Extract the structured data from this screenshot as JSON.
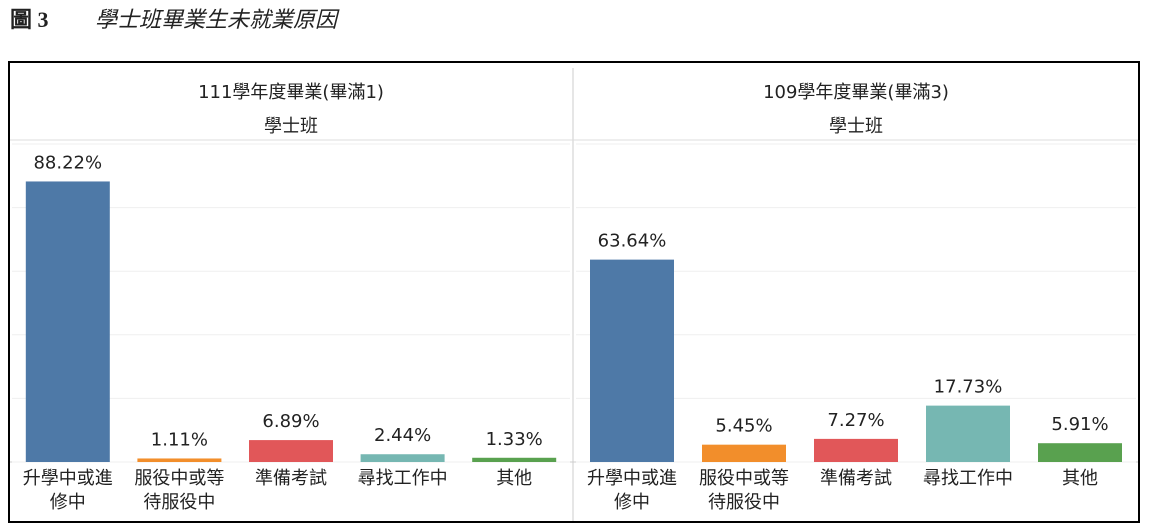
{
  "figure": {
    "label": "圖 3",
    "title": "學士班畢業生未就業原因"
  },
  "chart_data": [
    {
      "type": "bar",
      "title": "111學年度畢業(畢滿1)",
      "subtitle": "學士班",
      "categories": [
        "升學中或進修中",
        "服役中或等待服役中",
        "準備考試",
        "尋找工作中",
        "其他"
      ],
      "values": [
        88.22,
        1.11,
        6.89,
        2.44,
        1.33
      ],
      "value_labels": [
        "88.22%",
        "1.11%",
        "6.89%",
        "2.44%",
        "1.33%"
      ],
      "colors": [
        "#4e79a7",
        "#f28e2b",
        "#e15759",
        "#76b7b2",
        "#59a14f"
      ],
      "ylim": [
        0,
        100
      ],
      "yticks": [
        0,
        20,
        40,
        60,
        80,
        100
      ],
      "grid": true
    },
    {
      "type": "bar",
      "title": "109學年度畢業(畢滿3)",
      "subtitle": "學士班",
      "categories": [
        "升學中或進修中",
        "服役中或等待服役中",
        "準備考試",
        "尋找工作中",
        "其他"
      ],
      "values": [
        63.64,
        5.45,
        7.27,
        17.73,
        5.91
      ],
      "value_labels": [
        "63.64%",
        "5.45%",
        "7.27%",
        "17.73%",
        "5.91%"
      ],
      "colors": [
        "#4e79a7",
        "#f28e2b",
        "#e15759",
        "#76b7b2",
        "#59a14f"
      ],
      "ylim": [
        0,
        100
      ],
      "yticks": [
        0,
        20,
        40,
        60,
        80,
        100
      ],
      "grid": true
    }
  ]
}
